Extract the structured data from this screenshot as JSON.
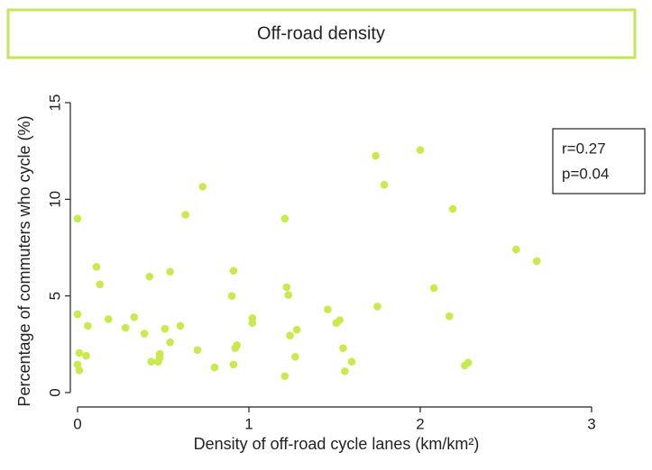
{
  "chart_data": {
    "type": "scatter",
    "title": "Off-road density",
    "xlabel": "Density of off-road cycle lanes (km/km²)",
    "ylabel": "Percentage of commuters who cycle (%)",
    "annotations": [
      "r=0.27",
      "p=0.04"
    ],
    "color": "#c8ea4c",
    "xlim": [
      0,
      3
    ],
    "xticks": [
      0,
      1,
      2,
      3
    ],
    "ylim": [
      0,
      15
    ],
    "yticks": [
      0,
      5,
      10,
      15
    ],
    "x": [
      0,
      0,
      0.01,
      0,
      0.01,
      0.05,
      0.06,
      0.11,
      0.13,
      0.18,
      0.28,
      0.33,
      0.39,
      0.42,
      0.43,
      0.47,
      0.48,
      0.48,
      0.51,
      0.54,
      0.54,
      0.6,
      0.63,
      0.7,
      0.73,
      0.8,
      0.9,
      0.91,
      0.91,
      0.92,
      0.93,
      1.02,
      1.02,
      1.21,
      1.21,
      1.22,
      1.23,
      1.24,
      1.27,
      1.28,
      1.46,
      1.51,
      1.53,
      1.55,
      1.56,
      1.6,
      1.74,
      1.75,
      1.79,
      2.0,
      2.08,
      2.17,
      2.19,
      2.26,
      2.28,
      2.56,
      2.68
    ],
    "y": [
      9.0,
      4.05,
      2.05,
      1.45,
      1.15,
      1.9,
      3.45,
      6.5,
      5.6,
      3.8,
      3.35,
      3.9,
      3.05,
      6.0,
      1.6,
      1.6,
      1.8,
      2.0,
      3.3,
      6.25,
      2.6,
      3.45,
      9.2,
      2.2,
      10.65,
      1.3,
      5.0,
      6.3,
      1.45,
      2.3,
      2.45,
      3.85,
      3.6,
      9.0,
      0.85,
      5.45,
      5.05,
      2.95,
      1.85,
      3.25,
      4.3,
      3.6,
      3.75,
      2.3,
      1.1,
      1.6,
      12.25,
      4.45,
      10.75,
      12.55,
      5.4,
      3.95,
      9.5,
      1.4,
      1.55,
      7.4,
      6.8
    ]
  }
}
